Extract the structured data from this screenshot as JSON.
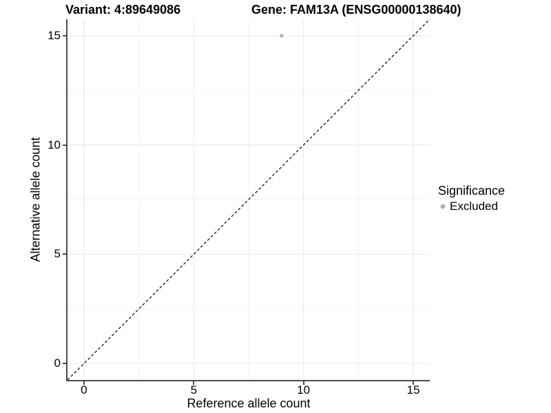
{
  "titles": {
    "variant": "Variant: 4:89649086",
    "gene": "Gene: FAM13A (ENSG00000138640)"
  },
  "axes": {
    "x": {
      "label": "Reference allele count"
    },
    "y": {
      "label": "Alternative allele count"
    }
  },
  "legend": {
    "title": "Significance",
    "items": [
      {
        "label": "Excluded",
        "marker_color": "#b3b3b3"
      }
    ]
  },
  "colors": {
    "axis_line": "#4a4a4a",
    "grid_major": "#e6e6e6",
    "grid_minor": "#f2f2f2",
    "point": "#b3b3b3",
    "dashed_line": "#000000",
    "text": "#000000",
    "background": "#ffffff"
  },
  "chart_data": {
    "type": "scatter",
    "title": "Variant: 4:89649086    Gene: FAM13A (ENSG00000138640)",
    "xlabel": "Reference allele count",
    "ylabel": "Alternative allele count",
    "xlim": [
      -0.75,
      15.75
    ],
    "ylim": [
      -0.75,
      15.75
    ],
    "x_ticks": [
      0,
      5,
      10,
      15
    ],
    "y_ticks": [
      0,
      5,
      10,
      15
    ],
    "x_minor_ticks": [
      2.5,
      7.5,
      12.5
    ],
    "y_minor_ticks": [
      2.5,
      7.5,
      12.5
    ],
    "grid": "on",
    "legend_position": "right",
    "series": [
      {
        "name": "Excluded",
        "color": "#b3b3b3",
        "points": [
          {
            "x": 9,
            "y": 15
          }
        ]
      }
    ],
    "reference_line": {
      "type": "identity y=x",
      "from": [
        -0.75,
        -0.75
      ],
      "to": [
        15.75,
        15.75
      ],
      "style": "dashed",
      "color": "#000000"
    }
  }
}
